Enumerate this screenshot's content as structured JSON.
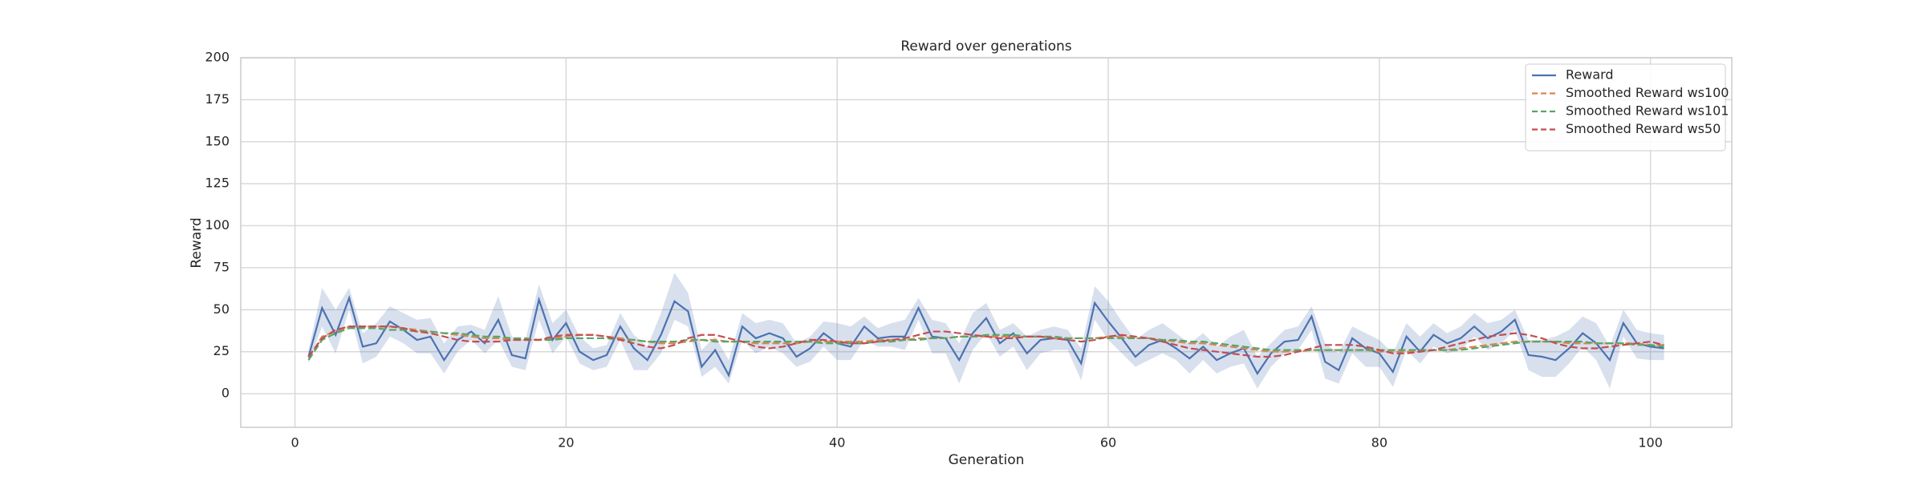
{
  "chart_data": {
    "type": "line",
    "title": "Reward over generations",
    "x_label": "Generation",
    "y_label": "Reward",
    "x": [
      1,
      2,
      3,
      4,
      5,
      6,
      7,
      8,
      9,
      10,
      11,
      12,
      13,
      14,
      15,
      16,
      17,
      18,
      19,
      20,
      21,
      22,
      23,
      24,
      25,
      26,
      27,
      28,
      29,
      30,
      31,
      32,
      33,
      34,
      35,
      36,
      37,
      38,
      39,
      40,
      41,
      42,
      43,
      44,
      45,
      46,
      47,
      48,
      49,
      50,
      51,
      52,
      53,
      54,
      55,
      56,
      57,
      58,
      59,
      60,
      61,
      62,
      63,
      64,
      65,
      66,
      67,
      68,
      69,
      70,
      71,
      72,
      73,
      74,
      75,
      76,
      77,
      78,
      79,
      80,
      81,
      82,
      83,
      84,
      85,
      86,
      87,
      88,
      89,
      90,
      91,
      92,
      93,
      94,
      95,
      96,
      97,
      98,
      99,
      100,
      101
    ],
    "series": [
      {
        "name": "Reward",
        "color": "#4c72b0",
        "linestyle": "solid",
        "values": [
          22,
          51,
          35,
          57,
          28,
          30,
          43,
          38,
          32,
          34,
          20,
          32,
          37,
          30,
          44,
          23,
          21,
          56,
          32,
          42,
          25,
          20,
          23,
          40,
          27,
          20,
          35,
          55,
          49,
          16,
          26,
          11,
          40,
          33,
          36,
          33,
          22,
          27,
          36,
          30,
          28,
          40,
          33,
          34,
          34,
          51,
          34,
          33,
          20,
          36,
          45,
          30,
          36,
          24,
          32,
          33,
          32,
          18,
          54,
          43,
          33,
          22,
          29,
          32,
          27,
          21,
          28,
          20,
          24,
          27,
          12,
          24,
          31,
          32,
          46,
          19,
          14,
          33,
          27,
          24,
          13,
          34,
          25,
          35,
          30,
          33,
          40,
          33,
          37,
          44,
          23,
          22,
          20,
          27,
          36,
          30,
          20,
          42,
          30,
          28,
          27
        ],
        "upper": [
          26,
          63,
          50,
          63,
          36,
          42,
          52,
          48,
          44,
          45,
          30,
          40,
          41,
          38,
          58,
          34,
          32,
          65,
          42,
          50,
          34,
          27,
          29,
          48,
          35,
          28,
          48,
          72,
          60,
          26,
          34,
          20,
          48,
          42,
          44,
          42,
          30,
          34,
          43,
          42,
          40,
          46,
          39,
          42,
          44,
          57,
          44,
          42,
          30,
          48,
          54,
          38,
          42,
          34,
          38,
          40,
          38,
          27,
          64,
          55,
          43,
          32,
          38,
          42,
          36,
          30,
          36,
          28,
          34,
          38,
          22,
          30,
          38,
          40,
          52,
          30,
          24,
          40,
          36,
          32,
          24,
          42,
          34,
          42,
          36,
          40,
          48,
          42,
          44,
          50,
          32,
          32,
          34,
          38,
          46,
          42,
          28,
          50,
          38,
          36,
          35
        ],
        "lower": [
          18,
          40,
          24,
          50,
          18,
          22,
          34,
          30,
          24,
          24,
          12,
          25,
          32,
          24,
          32,
          16,
          14,
          44,
          24,
          34,
          18,
          14,
          16,
          32,
          14,
          14,
          24,
          44,
          40,
          10,
          16,
          6,
          32,
          24,
          28,
          24,
          16,
          19,
          28,
          20,
          20,
          32,
          28,
          28,
          26,
          44,
          24,
          24,
          6,
          26,
          36,
          22,
          28,
          14,
          24,
          26,
          26,
          8,
          44,
          32,
          24,
          16,
          20,
          24,
          20,
          12,
          20,
          12,
          16,
          18,
          3,
          16,
          24,
          26,
          38,
          9,
          6,
          24,
          16,
          16,
          4,
          26,
          18,
          28,
          24,
          26,
          34,
          26,
          30,
          38,
          14,
          10,
          10,
          18,
          28,
          20,
          3,
          34,
          21,
          20,
          20
        ]
      },
      {
        "name": "Smoothed Reward ws100",
        "color": "#dd8452",
        "linestyle": "dashed",
        "values": [
          21,
          34,
          37,
          40,
          40,
          40,
          40,
          39,
          38,
          37,
          36,
          35,
          34,
          33,
          33,
          32,
          32,
          32,
          33,
          34,
          35,
          35,
          34,
          33,
          32,
          31,
          30,
          30,
          31,
          32,
          32,
          31,
          31,
          30,
          30,
          30,
          30,
          31,
          31,
          31,
          31,
          31,
          32,
          32,
          32,
          33,
          33,
          33,
          34,
          34,
          34,
          34,
          34,
          34,
          34,
          33,
          33,
          33,
          33,
          34,
          34,
          33,
          33,
          32,
          31,
          30,
          30,
          29,
          28,
          27,
          26,
          25,
          25,
          25,
          26,
          26,
          26,
          26,
          26,
          25,
          25,
          25,
          25,
          26,
          26,
          27,
          28,
          29,
          30,
          31,
          31,
          31,
          31,
          30,
          30,
          30,
          30,
          30,
          30,
          29,
          29
        ]
      },
      {
        "name": "Smoothed Reward ws101",
        "color": "#55a868",
        "linestyle": "dashed",
        "values": [
          20,
          32,
          36,
          39,
          39,
          39,
          38,
          38,
          37,
          37,
          36,
          36,
          35,
          34,
          34,
          33,
          33,
          32,
          32,
          33,
          33,
          33,
          33,
          32,
          32,
          31,
          31,
          31,
          32,
          32,
          31,
          31,
          31,
          31,
          31,
          31,
          31,
          31,
          30,
          30,
          30,
          30,
          31,
          31,
          32,
          32,
          33,
          33,
          34,
          34,
          35,
          35,
          35,
          34,
          34,
          34,
          33,
          33,
          33,
          33,
          33,
          33,
          33,
          32,
          32,
          31,
          31,
          30,
          29,
          28,
          27,
          26,
          26,
          26,
          26,
          26,
          26,
          26,
          26,
          26,
          26,
          26,
          26,
          26,
          26,
          26,
          27,
          28,
          29,
          30,
          31,
          31,
          31,
          31,
          31,
          30,
          30,
          30,
          29,
          29,
          28
        ]
      },
      {
        "name": "Smoothed Reward ws50",
        "color": "#c44e52",
        "linestyle": "dashed",
        "values": [
          22,
          33,
          38,
          40,
          40,
          40,
          40,
          39,
          37,
          36,
          34,
          32,
          31,
          31,
          31,
          32,
          32,
          32,
          34,
          35,
          35,
          35,
          34,
          32,
          30,
          28,
          27,
          29,
          33,
          35,
          35,
          33,
          31,
          28,
          27,
          28,
          30,
          32,
          32,
          31,
          30,
          30,
          31,
          32,
          33,
          35,
          37,
          37,
          36,
          35,
          34,
          33,
          33,
          34,
          34,
          33,
          32,
          31,
          32,
          34,
          35,
          34,
          33,
          31,
          29,
          27,
          26,
          25,
          24,
          23,
          22,
          22,
          23,
          25,
          27,
          29,
          29,
          29,
          28,
          26,
          24,
          24,
          25,
          26,
          28,
          30,
          32,
          34,
          35,
          36,
          35,
          33,
          30,
          28,
          27,
          27,
          28,
          29,
          30,
          31,
          29
        ]
      }
    ],
    "xlim": [
      -4,
      106
    ],
    "xticks": [
      0,
      20,
      40,
      60,
      80,
      100
    ],
    "ylim": [
      -20,
      200
    ],
    "yticks": [
      0,
      25,
      50,
      75,
      100,
      125,
      150,
      175,
      200
    ],
    "grid": true,
    "legend": "upper right"
  }
}
